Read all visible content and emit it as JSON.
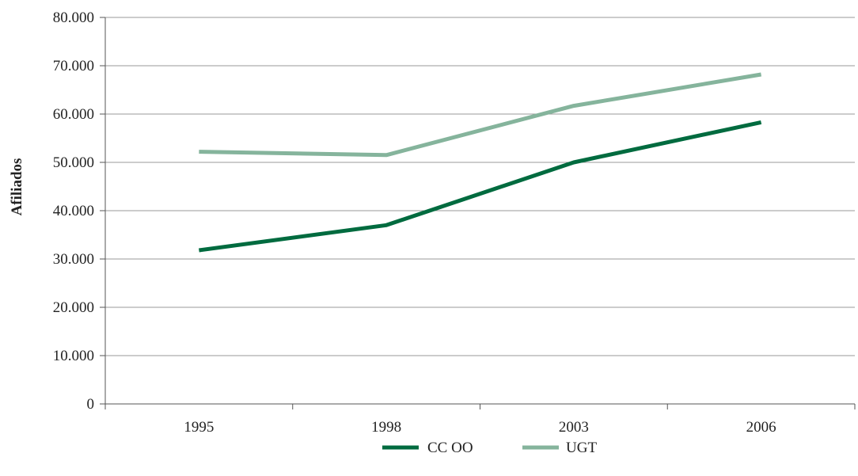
{
  "chart_data": {
    "type": "line",
    "title": "",
    "xlabel": "",
    "ylabel": "Afiliados",
    "categories": [
      "1995",
      "1998",
      "2003",
      "2006"
    ],
    "ylim": [
      0,
      80000
    ],
    "y_ticks": [
      0,
      10000,
      20000,
      30000,
      40000,
      50000,
      60000,
      70000,
      80000
    ],
    "y_tick_labels": [
      "0",
      "10.000",
      "20.000",
      "30.000",
      "40.000",
      "50.000",
      "60.000",
      "70.000",
      "80.000"
    ],
    "grid": "horizontal",
    "legend_position": "bottom",
    "series": [
      {
        "name": "CC OO",
        "color": "#006b3f",
        "values": [
          31800,
          37000,
          50000,
          58300
        ]
      },
      {
        "name": "UGT",
        "color": "#85b49c",
        "values": [
          52200,
          51500,
          61700,
          68200
        ]
      }
    ]
  }
}
